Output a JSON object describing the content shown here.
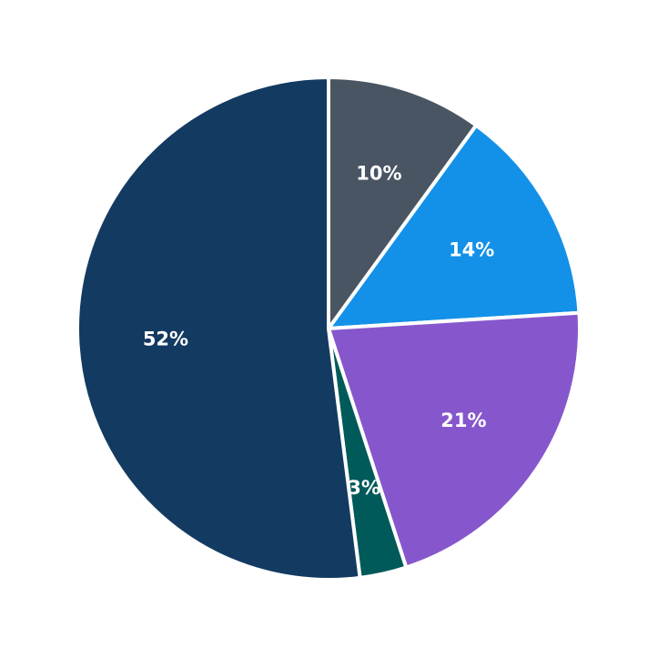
{
  "chart_data": {
    "type": "pie",
    "title": "",
    "start_angle": "top, clockwise",
    "slices": [
      {
        "label": "10%",
        "value": 10,
        "color": "#4a5563"
      },
      {
        "label": "14%",
        "value": 14,
        "color": "#1391e8"
      },
      {
        "label": "21%",
        "value": 21,
        "color": "#8657cc"
      },
      {
        "label": "3%",
        "value": 3,
        "color": "#005a5a"
      },
      {
        "label": "52%",
        "value": 52,
        "color": "#133a61"
      }
    ],
    "legend": "none"
  }
}
